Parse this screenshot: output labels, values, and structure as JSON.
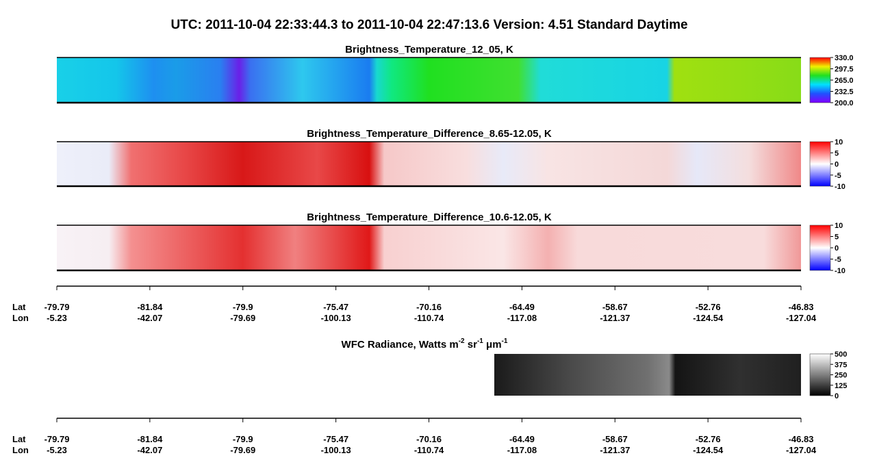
{
  "title": "UTC:  2011-10-04   22:33:44.3  to  2011-10-04   22:47:13.6    Version: 4.51  Standard Daytime",
  "panels": [
    {
      "title": "Brightness_Temperature_12_05, K",
      "colorbar": {
        "lim": [
          200,
          330
        ],
        "ticks": [
          {
            "value": 330,
            "label": "330.0"
          },
          {
            "value": 297.5,
            "label": "297.5"
          },
          {
            "value": 265,
            "label": "265.0"
          },
          {
            "value": 232.5,
            "label": "232.5"
          },
          {
            "value": 200,
            "label": "200.0"
          }
        ]
      }
    },
    {
      "title": "Brightness_Temperature_Difference_8.65-12.05, K",
      "colorbar": {
        "lim": [
          -10,
          10
        ],
        "ticks": [
          10,
          5,
          0,
          -5,
          -10
        ]
      }
    },
    {
      "title": "Brightness_Temperature_Difference_10.6-12.05, K",
      "colorbar": {
        "lim": [
          -10,
          10
        ],
        "ticks": [
          10,
          5,
          0,
          -5,
          -10
        ]
      }
    }
  ],
  "wfc": {
    "title": [
      "WFC Radiance, Watts m",
      "-2",
      " sr",
      "-1",
      " μm",
      "-1"
    ],
    "colorbar": {
      "lim": [
        0,
        500
      ],
      "ticks": [
        500,
        375,
        250,
        125,
        0
      ]
    }
  },
  "axes": [
    {
      "lat_label": "Lat",
      "lon_label": "Lon",
      "lat": [
        -79.79,
        -81.84,
        -79.9,
        -75.47,
        -70.16,
        -64.49,
        -58.67,
        -52.76,
        -46.83
      ],
      "lon": [
        -5.23,
        -42.07,
        -79.69,
        -100.13,
        -110.74,
        -117.08,
        -121.37,
        -124.54,
        -127.04
      ]
    },
    {
      "lat_label": "Lat",
      "lon_label": "Lon",
      "lat": [
        -79.79,
        -81.84,
        -79.9,
        -75.47,
        -70.16,
        -64.49,
        -58.67,
        -52.76,
        -46.83
      ],
      "lon": [
        -5.23,
        -42.07,
        -79.69,
        -100.13,
        -110.74,
        -117.08,
        -121.37,
        -124.54,
        -127.04
      ]
    }
  ]
}
